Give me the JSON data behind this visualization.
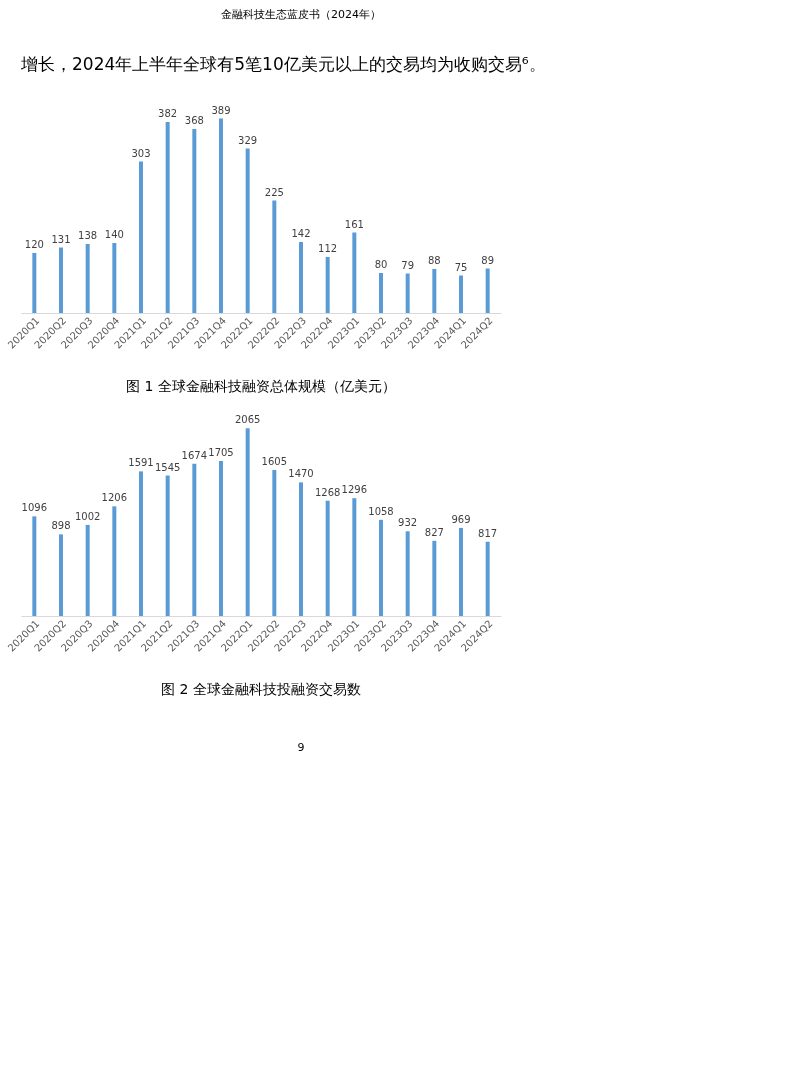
{
  "chart_data": [
    {
      "type": "bar",
      "title": "图 1 全球金融科技融资总体规模（亿美元）",
      "annotations": [
        "金融科技生态蓝皮书（2024年）",
        "增长，2024年上半年全球有5笔10亿美元以上的交易均为收购交易⁶。"
      ],
      "categories": [
        "2020Q1",
        "2020Q2",
        "2020Q3",
        "2020Q4",
        "2021Q1",
        "2021Q2",
        "2021Q3",
        "2021Q4",
        "2022Q1",
        "2022Q2",
        "2022Q3",
        "2022Q4",
        "2023Q1",
        "2023Q2",
        "2023Q3",
        "2023Q4",
        "2024Q1",
        "2024Q2"
      ],
      "values": [
        120,
        131,
        138,
        140,
        303,
        382,
        368,
        389,
        329,
        225,
        142,
        112,
        161,
        80,
        79,
        88,
        75,
        89
      ],
      "color": "#5b9bd5",
      "data_labels": true,
      "grid": false
    },
    {
      "type": "bar",
      "title": "图 2 全球金融科技投融资交易数",
      "annotations": [
        "9"
      ],
      "categories": [
        "2020Q1",
        "2020Q2",
        "2020Q3",
        "2020Q4",
        "2021Q1",
        "2021Q2",
        "2021Q3",
        "2021Q4",
        "2022Q1",
        "2022Q2",
        "2022Q3",
        "2022Q4",
        "2023Q1",
        "2023Q2",
        "2023Q3",
        "2023Q4",
        "2024Q1",
        "2024Q2"
      ],
      "values": [
        1096,
        898,
        1002,
        1206,
        1591,
        1545,
        1674,
        1705,
        2065,
        1605,
        1470,
        1268,
        1296,
        1058,
        932,
        827,
        969,
        817
      ],
      "color": "#5b9bd5",
      "data_labels": true,
      "grid": false
    }
  ]
}
